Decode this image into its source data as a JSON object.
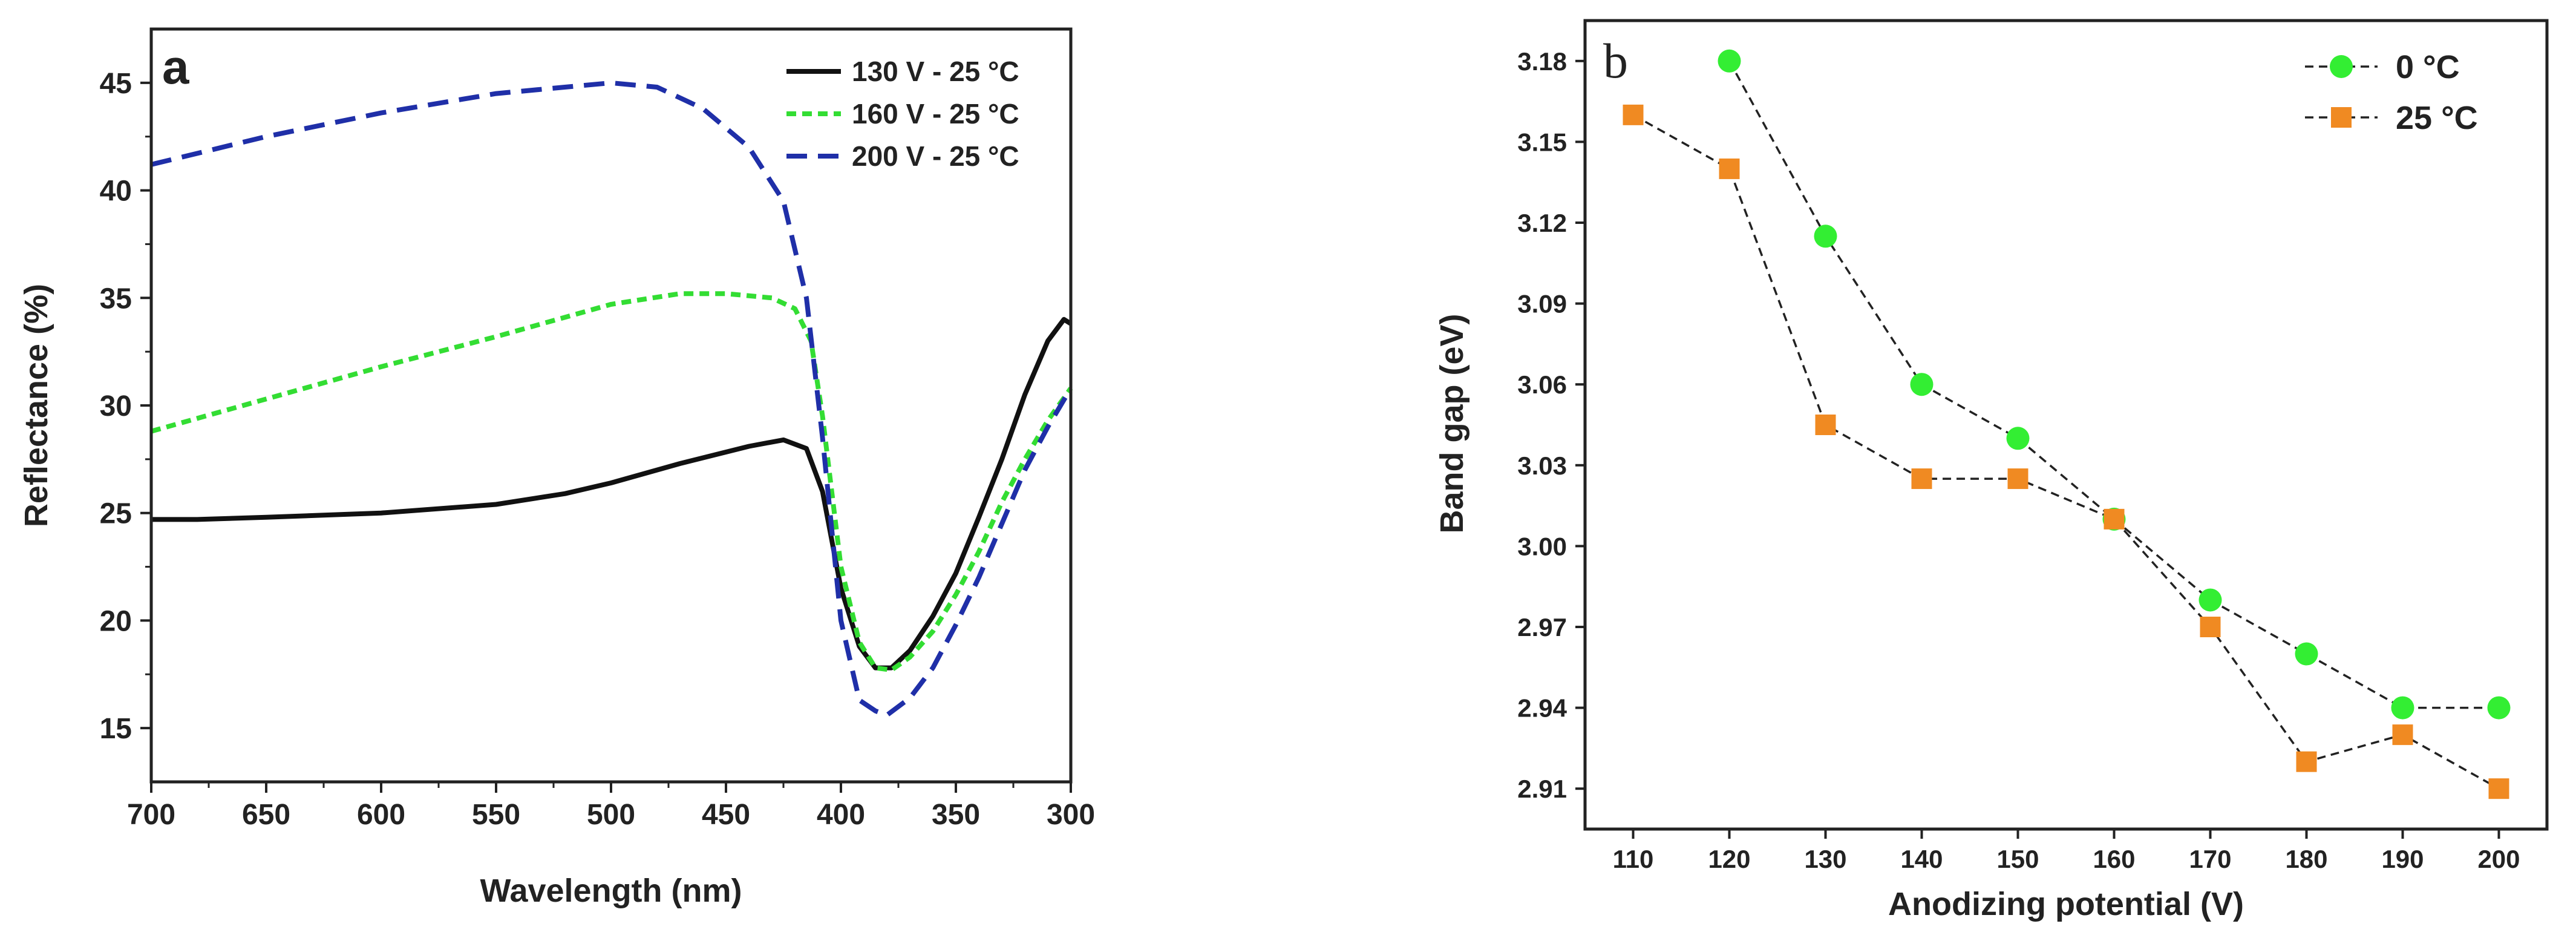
{
  "chart_data": [
    {
      "type": "line",
      "panel_label": "a",
      "title": "",
      "xlabel": "Wavelength (nm)",
      "ylabel": "Reflectance (%)",
      "xlim": [
        700,
        300
      ],
      "ylim": [
        12.5,
        47.5
      ],
      "x_reversed": true,
      "xticks": [
        700,
        650,
        600,
        550,
        500,
        450,
        400,
        350,
        300
      ],
      "yticks": [
        15,
        20,
        25,
        30,
        35,
        40,
        45
      ],
      "legend_position": "top-right",
      "series": [
        {
          "name": "130 V - 25 °C",
          "color": "#111111",
          "dash": "solid",
          "x": [
            700,
            680,
            650,
            600,
            550,
            520,
            500,
            470,
            440,
            425,
            415,
            408,
            400,
            392,
            385,
            378,
            370,
            360,
            350,
            340,
            330,
            320,
            310,
            303,
            300
          ],
          "y": [
            24.7,
            24.7,
            24.8,
            25.0,
            25.4,
            25.9,
            26.4,
            27.3,
            28.1,
            28.4,
            28.0,
            26.0,
            21.5,
            18.8,
            17.8,
            17.8,
            18.6,
            20.2,
            22.2,
            24.8,
            27.5,
            30.5,
            33.0,
            34.0,
            33.8
          ]
        },
        {
          "name": "160 V - 25 °C",
          "color": "#33dd33",
          "dash": "short-dash",
          "x": [
            700,
            650,
            600,
            550,
            500,
            470,
            450,
            430,
            420,
            413,
            408,
            400,
            392,
            385,
            378,
            370,
            360,
            350,
            340,
            330,
            320,
            310,
            300
          ],
          "y": [
            28.8,
            30.3,
            31.8,
            33.2,
            34.7,
            35.2,
            35.2,
            35.0,
            34.5,
            33.0,
            29.5,
            22.5,
            19.0,
            17.8,
            17.7,
            18.3,
            19.5,
            21.2,
            23.2,
            25.5,
            27.5,
            29.3,
            30.8
          ]
        },
        {
          "name": "200 V - 25 °C",
          "color": "#1f2fa8",
          "dash": "long-dash",
          "x": [
            700,
            650,
            600,
            550,
            500,
            480,
            460,
            440,
            425,
            415,
            408,
            400,
            392,
            385,
            380,
            370,
            360,
            350,
            340,
            330,
            320,
            310,
            300
          ],
          "y": [
            41.2,
            42.5,
            43.6,
            44.5,
            45.0,
            44.8,
            43.8,
            42.0,
            39.5,
            35.0,
            28.5,
            20.0,
            16.3,
            15.8,
            15.6,
            16.4,
            17.8,
            19.8,
            22.0,
            24.5,
            27.0,
            29.0,
            30.8
          ]
        }
      ]
    },
    {
      "type": "line",
      "panel_label": "b",
      "title": "",
      "xlabel": "Anodizing potential (V)",
      "ylabel": "Band gap (eV)",
      "xlim": [
        105,
        205
      ],
      "ylim": [
        2.895,
        3.195
      ],
      "xticks": [
        110,
        120,
        130,
        140,
        150,
        160,
        170,
        180,
        190,
        200
      ],
      "yticks": [
        2.91,
        2.94,
        2.97,
        3.0,
        3.03,
        3.06,
        3.09,
        3.12,
        3.15,
        3.18
      ],
      "ytick_labels": [
        "2.91",
        "2.94",
        "2.97",
        "3.00",
        "3.03",
        "3.06",
        "3.09",
        "3.12",
        "3.15",
        "3.18"
      ],
      "legend_position": "top-right",
      "series": [
        {
          "name": "0 °C",
          "color": "#33ee33",
          "marker": "circle",
          "line": "dashed",
          "x": [
            120,
            130,
            140,
            150,
            160,
            170,
            180,
            190,
            200
          ],
          "y": [
            3.18,
            3.115,
            3.06,
            3.04,
            3.01,
            2.98,
            2.96,
            2.94,
            2.94
          ]
        },
        {
          "name": "25 °C",
          "color": "#f08a22",
          "marker": "square",
          "line": "dashed",
          "x": [
            110,
            120,
            130,
            140,
            150,
            160,
            170,
            180,
            190,
            200
          ],
          "y": [
            3.16,
            3.14,
            3.045,
            3.025,
            3.025,
            3.01,
            2.97,
            2.92,
            2.93,
            2.91
          ]
        }
      ]
    }
  ]
}
